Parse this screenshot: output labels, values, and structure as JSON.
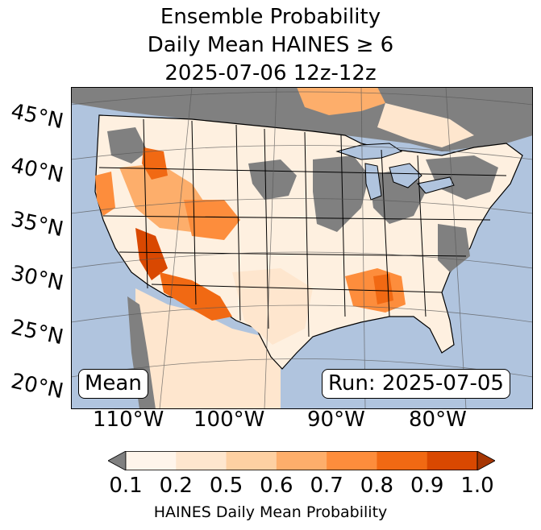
{
  "title": {
    "line1": "Ensemble Probability",
    "line2": "Daily Mean HAINES ≥ 6",
    "line3": "2025-07-06 12z-12z"
  },
  "map": {
    "latitude_labels": [
      "45°N",
      "40°N",
      "35°N",
      "30°N",
      "25°N",
      "20°N"
    ],
    "longitude_labels": [
      "110°W",
      "100°W",
      "90°W",
      "80°W"
    ],
    "stat_label": "Mean",
    "run_label": "Run: 2025-07-05",
    "colors": {
      "ocean": "#b0c4de",
      "below_range": "#808080",
      "land_low": "#fef0e0"
    }
  },
  "colorbar": {
    "label": "HAINES Daily Mean Probability",
    "ticks": [
      "0.1",
      "0.2",
      "0.5",
      "0.6",
      "0.7",
      "0.8",
      "0.9",
      "1.0"
    ],
    "colors": [
      "#fff5eb",
      "#fee6ce",
      "#fdd0a2",
      "#fdae6b",
      "#fd8d3c",
      "#f16913",
      "#d94801",
      "#a63603"
    ],
    "under_color": "#808080"
  }
}
